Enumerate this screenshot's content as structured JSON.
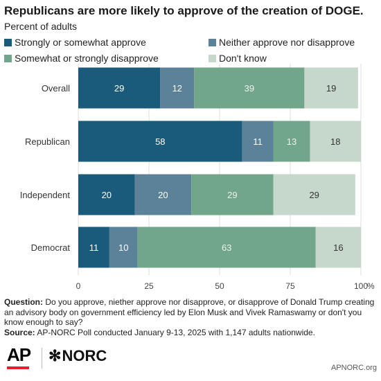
{
  "header": {
    "title": "Republicans are more likely to approve of the creation of DOGE.",
    "subtitle": "Percent of adults"
  },
  "legend": [
    {
      "label": "Strongly or somewhat approve",
      "color": "#1a5a7a"
    },
    {
      "label": "Neither approve nor disapprove",
      "color": "#5b8299"
    },
    {
      "label": "Somewhat or strongly disapprove",
      "color": "#72a68a"
    },
    {
      "label": "Don't know",
      "color": "#c6d8cb"
    }
  ],
  "chart_data": {
    "type": "bar",
    "orientation": "horizontal",
    "stacked": true,
    "categories": [
      "Overall",
      "Republican",
      "Independent",
      "Democrat"
    ],
    "series": [
      {
        "name": "Strongly or somewhat approve",
        "values": [
          29,
          58,
          20,
          11
        ],
        "color": "#1a5a7a"
      },
      {
        "name": "Neither approve nor disapprove",
        "values": [
          12,
          11,
          20,
          10
        ],
        "color": "#5b8299"
      },
      {
        "name": "Somewhat or strongly disapprove",
        "values": [
          39,
          13,
          29,
          63
        ],
        "color": "#72a68a"
      },
      {
        "name": "Don't know",
        "values": [
          19,
          18,
          29,
          16
        ],
        "color": "#c6d8cb"
      }
    ],
    "x_ticks": [
      "0",
      "25",
      "50",
      "75",
      "100"
    ],
    "x_tick_values": [
      0,
      25,
      50,
      75,
      100
    ],
    "x_unit": "%",
    "xlim": [
      0,
      100
    ],
    "grid": true
  },
  "footer": {
    "question_label": "Question:",
    "question_text": "Do you approve, niether approve nor disapprove, or disapprove of Donald Trump creating an advisory body on government efficiency led by Elon Musk and Vivek Ramaswamy or don't you know enough to say?",
    "source_label": "Source:",
    "source_text": "AP-NORC Poll conducted January 9-13, 2025 with 1,147 adults nationwide."
  },
  "branding": {
    "ap_logo": "AP",
    "norc_logo": "NORC",
    "norc_icon": "asterisk-star-icon",
    "site": "APNORC.org"
  }
}
